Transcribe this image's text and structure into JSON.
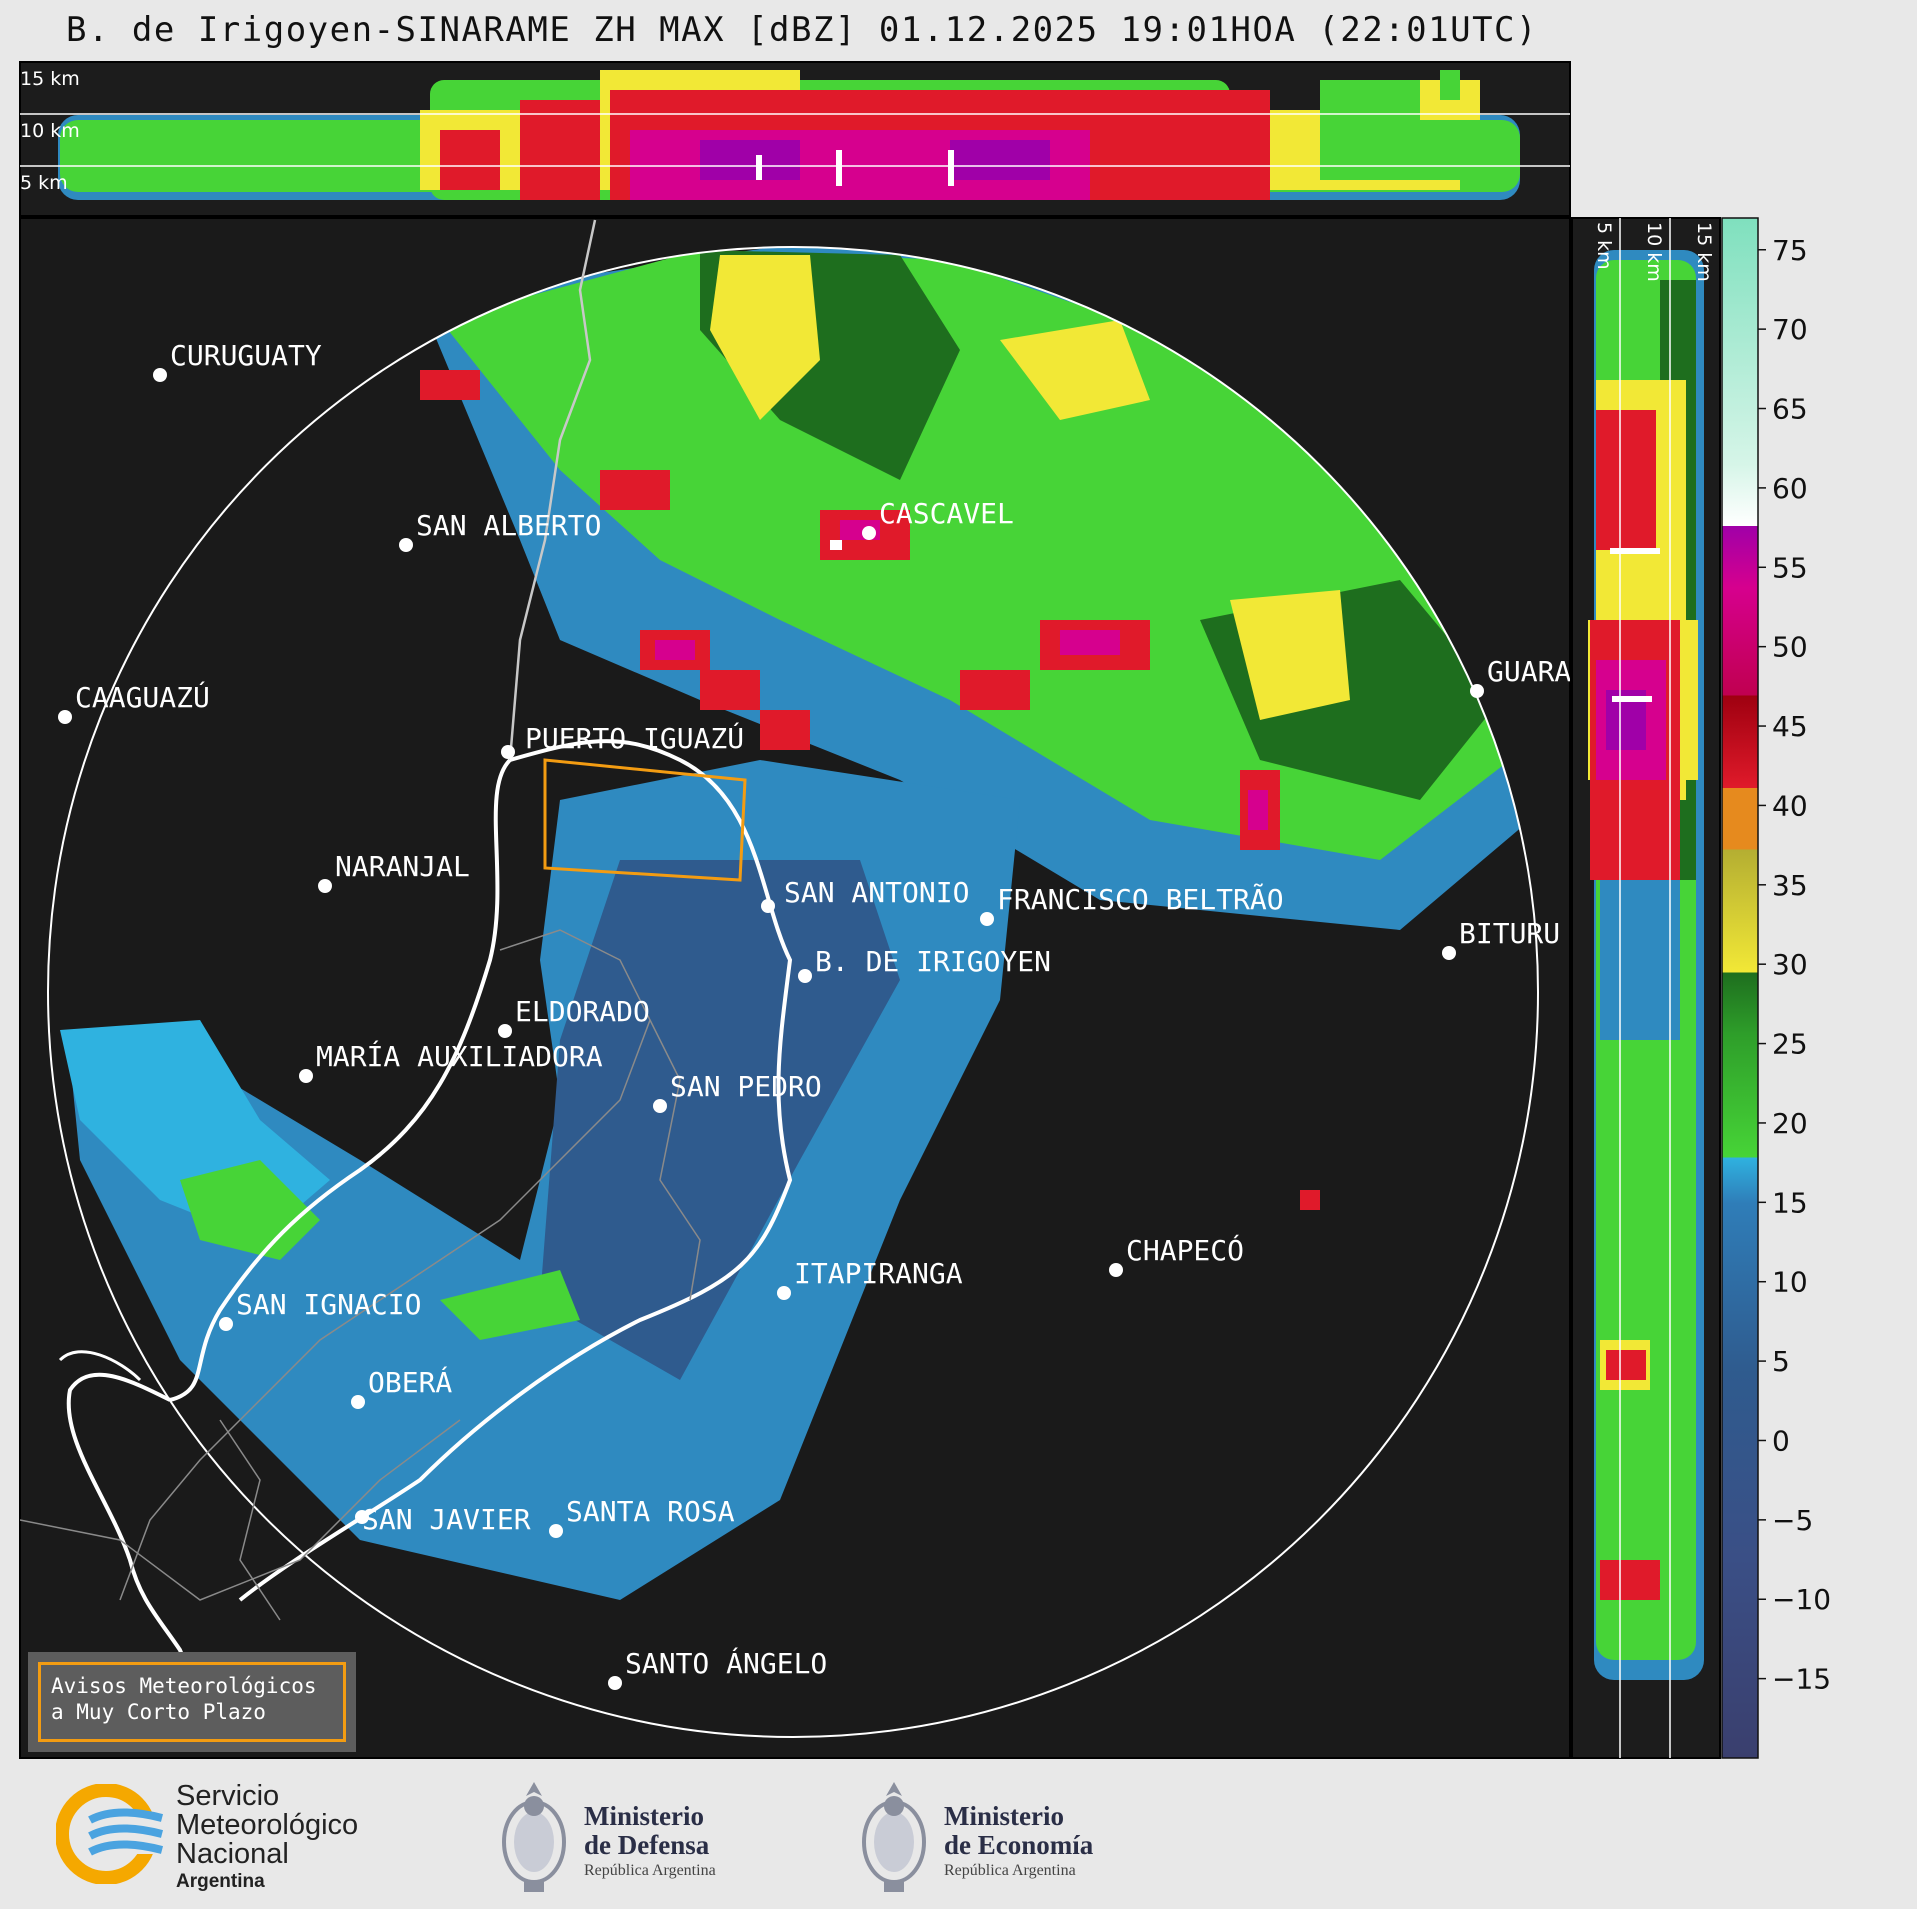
{
  "title": "B. de Irigoyen-SINARAME ZH MAX [dBZ] 01.12.2025 19:01HOA (22:01UTC)",
  "altitude_labels": {
    "top_15": "15 km",
    "top_10": "10 km",
    "top_5": "5 km",
    "side_5": "5 km",
    "side_10": "10 km",
    "side_15": "15 km"
  },
  "cities": [
    {
      "name": "CURUGUATY"
    },
    {
      "name": "SAN ALBERTO"
    },
    {
      "name": "CASCAVEL"
    },
    {
      "name": "CAAGUAZÚ"
    },
    {
      "name": "GUARA"
    },
    {
      "name": "PUERTO IGUAZÚ"
    },
    {
      "name": "NARANJAL"
    },
    {
      "name": "SAN ANTONIO"
    },
    {
      "name": "FRANCISCO BELTRÃO"
    },
    {
      "name": "BITURU"
    },
    {
      "name": "B. DE IRIGOYEN"
    },
    {
      "name": "ELDORADO"
    },
    {
      "name": "MARÍA AUXILIADORA"
    },
    {
      "name": "SAN PEDRO"
    },
    {
      "name": "CHAPECÓ"
    },
    {
      "name": "ITAPIRANGA"
    },
    {
      "name": "SAN IGNACIO"
    },
    {
      "name": "OBERÁ"
    },
    {
      "name": "SAN JAVIER"
    },
    {
      "name": "SANTA ROSA"
    },
    {
      "name": "SANTO ÁNGELO"
    }
  ],
  "colorbar": {
    "ticks": [
      "75",
      "70",
      "65",
      "60",
      "55",
      "50",
      "45",
      "40",
      "35",
      "30",
      "25",
      "20",
      "15",
      "10",
      "5",
      "0",
      "−5",
      "−10",
      "−15"
    ],
    "range": [
      -20,
      77
    ],
    "colors": {
      "neg": "#3a3f6e",
      "blue_dark": "#2f5b8e",
      "blue": "#2f8ac0",
      "cyan": "#2fb2e0",
      "green_light": "#47d437",
      "green_dark": "#1e6e1e",
      "yellow": "#f2e836",
      "olive": "#b4ae32",
      "orange": "#e68a1e",
      "red": "#e01a2a",
      "dark_red": "#9e0010",
      "magenta": "#d6008e",
      "violet": "#a000a8",
      "white": "#ffffff",
      "mint": "#7fe0be"
    }
  },
  "aviso": {
    "line1": "Avisos Meteorológicos",
    "line2": "a Muy Corto Plazo"
  },
  "footer": {
    "smn": {
      "line1": "Servicio",
      "line2": "Meteorológico",
      "line3": "Nacional",
      "line4": "Argentina"
    },
    "defensa": {
      "line1": "Ministerio",
      "line2": "de Defensa",
      "line3": "República Argentina"
    },
    "economia": {
      "line1": "Ministerio",
      "line2": "de Economía",
      "line3": "República Argentina"
    }
  }
}
